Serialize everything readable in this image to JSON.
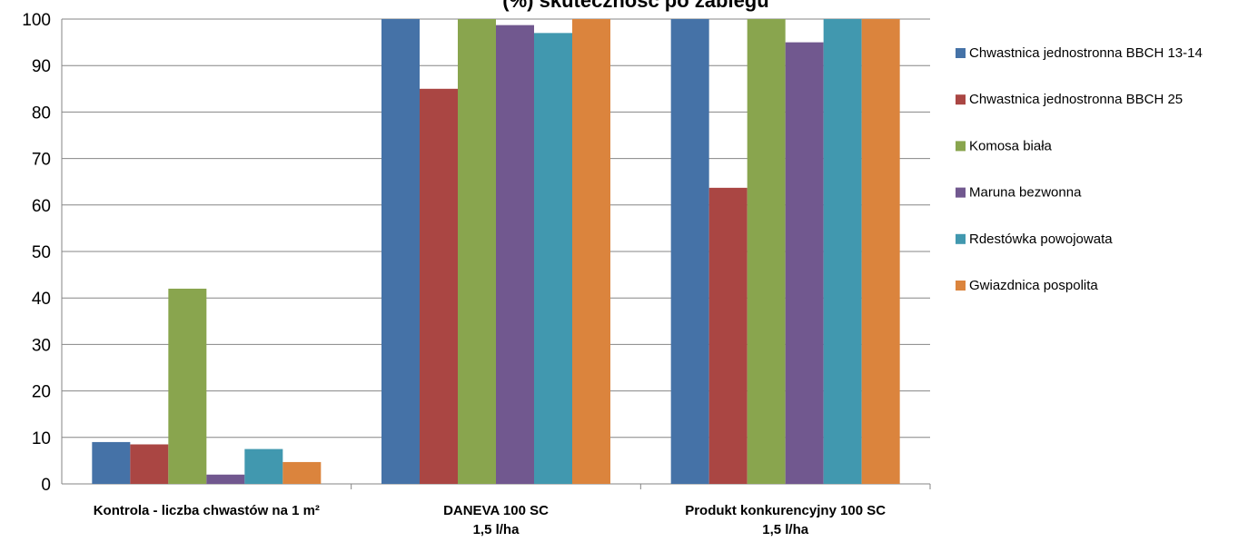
{
  "chart_data": {
    "type": "bar",
    "title": "(%) skuteczność po zabiegu",
    "ylim": [
      0,
      100
    ],
    "yticks": [
      0,
      10,
      20,
      30,
      40,
      50,
      60,
      70,
      80,
      90,
      100
    ],
    "grid": true,
    "legend_position": "right",
    "categories": [
      {
        "lines": [
          "Kontrola - liczba chwastów na 1 m²"
        ]
      },
      {
        "lines": [
          "DANEVA 100 SC",
          "1,5 l/ha"
        ]
      },
      {
        "lines": [
          "Produkt konkurencyjny 100 SC",
          "1,5 l/ha"
        ]
      }
    ],
    "series": [
      {
        "name": "Chwastnica jednostronna BBCH 13-14",
        "color": "#4572A7",
        "values": [
          9,
          100,
          100
        ]
      },
      {
        "name": "Chwastnica jednostronna BBCH 25",
        "color": "#AA4643",
        "values": [
          8.5,
          85,
          63.7
        ]
      },
      {
        "name": "Komosa biała",
        "color": "#89A54E",
        "values": [
          42,
          100,
          100
        ]
      },
      {
        "name": "Maruna bezwonna",
        "color": "#71588F",
        "values": [
          2,
          98.7,
          95
        ]
      },
      {
        "name": "Rdestówka powojowata",
        "color": "#4198AF",
        "values": [
          7.5,
          97,
          100
        ]
      },
      {
        "name": "Gwiazdnica pospolita",
        "color": "#DB843D",
        "values": [
          4.7,
          100,
          100
        ]
      }
    ]
  }
}
